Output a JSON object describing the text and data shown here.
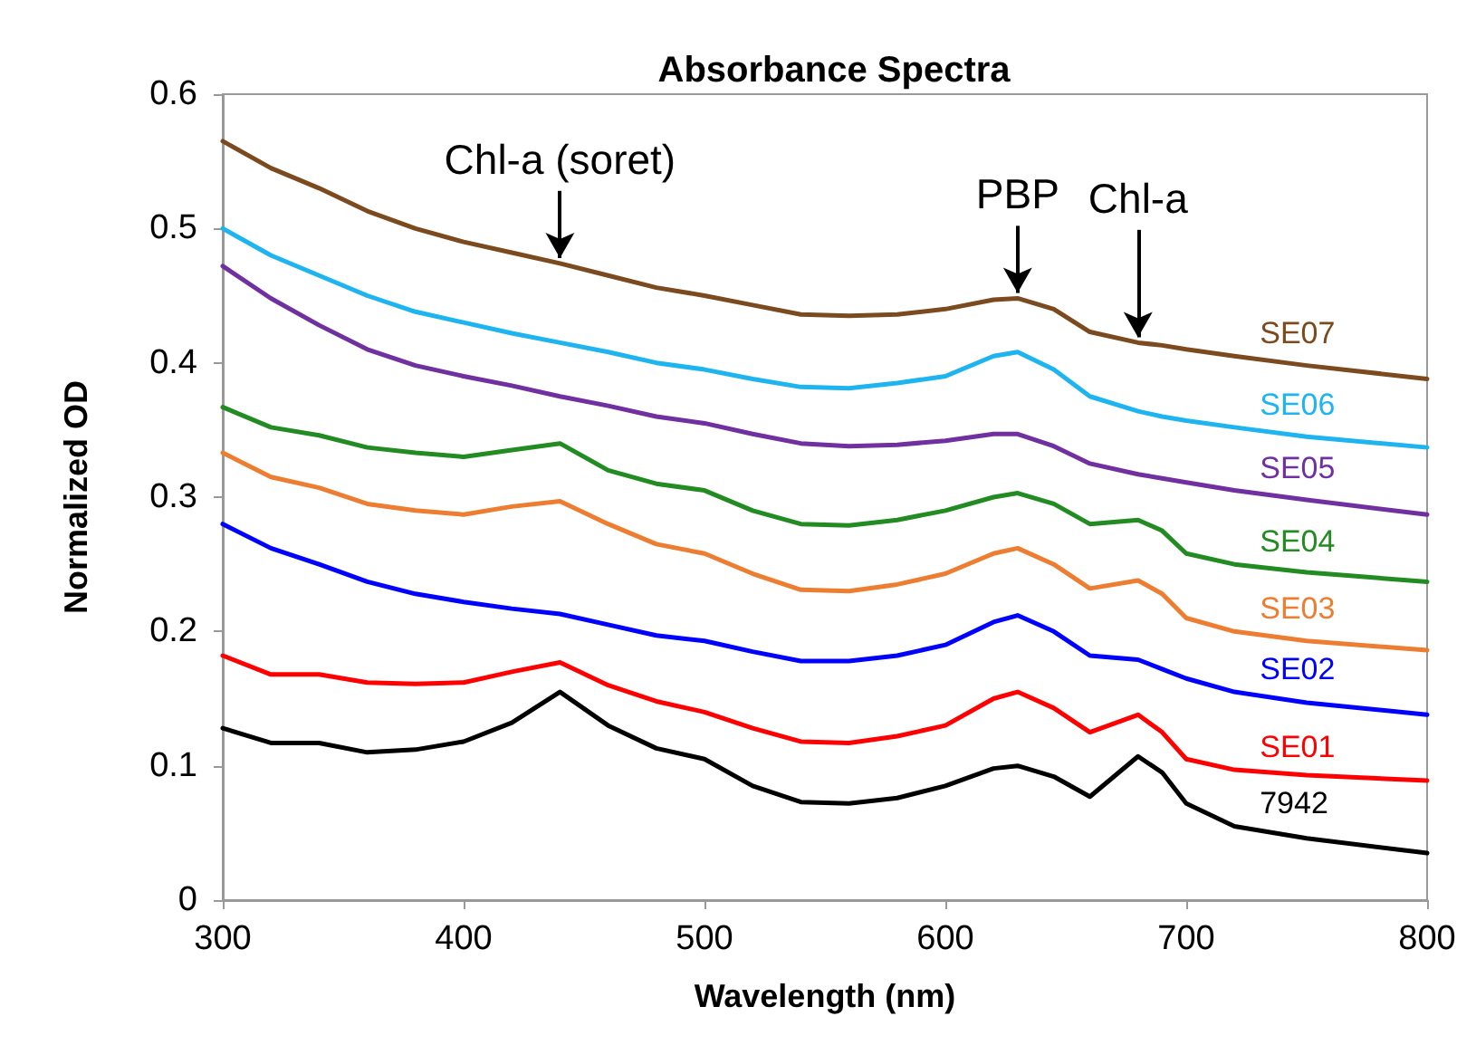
{
  "chart_data": {
    "type": "line",
    "title": "Absorbance Spectra",
    "xlabel": "Wavelength (nm)",
    "ylabel": "Normalized OD",
    "x": [
      300,
      320,
      340,
      360,
      380,
      400,
      420,
      440,
      460,
      480,
      500,
      520,
      540,
      560,
      580,
      600,
      620,
      630,
      645,
      660,
      680,
      690,
      700,
      720,
      750,
      800
    ],
    "series": [
      {
        "name": "7942",
        "color": "#000000",
        "values": [
          0.128,
          0.117,
          0.117,
          0.11,
          0.112,
          0.118,
          0.132,
          0.155,
          0.13,
          0.113,
          0.105,
          0.085,
          0.073,
          0.072,
          0.076,
          0.085,
          0.098,
          0.1,
          0.092,
          0.077,
          0.107,
          0.095,
          0.072,
          0.055,
          0.046,
          0.035
        ]
      },
      {
        "name": "SE01",
        "color": "#ff0000",
        "values": [
          0.182,
          0.168,
          0.168,
          0.162,
          0.161,
          0.162,
          0.17,
          0.177,
          0.16,
          0.148,
          0.14,
          0.128,
          0.118,
          0.117,
          0.122,
          0.13,
          0.15,
          0.155,
          0.143,
          0.125,
          0.138,
          0.125,
          0.105,
          0.097,
          0.093,
          0.089
        ]
      },
      {
        "name": "SE02",
        "color": "#0000ff",
        "values": [
          0.28,
          0.262,
          0.25,
          0.237,
          0.228,
          0.222,
          0.217,
          0.213,
          0.205,
          0.197,
          0.193,
          0.185,
          0.178,
          0.178,
          0.182,
          0.19,
          0.207,
          0.212,
          0.2,
          0.182,
          0.179,
          0.172,
          0.165,
          0.155,
          0.147,
          0.138
        ]
      },
      {
        "name": "SE03",
        "color": "#ed7d31",
        "values": [
          0.333,
          0.315,
          0.307,
          0.295,
          0.29,
          0.287,
          0.293,
          0.297,
          0.28,
          0.265,
          0.258,
          0.243,
          0.231,
          0.23,
          0.235,
          0.243,
          0.258,
          0.262,
          0.25,
          0.232,
          0.238,
          0.228,
          0.21,
          0.2,
          0.193,
          0.186
        ]
      },
      {
        "name": "SE04",
        "color": "#228b22",
        "values": [
          0.367,
          0.352,
          0.346,
          0.337,
          0.333,
          0.33,
          0.335,
          0.34,
          0.32,
          0.31,
          0.305,
          0.29,
          0.28,
          0.279,
          0.283,
          0.29,
          0.3,
          0.303,
          0.295,
          0.28,
          0.283,
          0.275,
          0.258,
          0.25,
          0.244,
          0.237
        ]
      },
      {
        "name": "SE05",
        "color": "#7030a0",
        "values": [
          0.472,
          0.448,
          0.428,
          0.41,
          0.398,
          0.39,
          0.383,
          0.375,
          0.368,
          0.36,
          0.355,
          0.347,
          0.34,
          0.338,
          0.339,
          0.342,
          0.347,
          0.347,
          0.338,
          0.325,
          0.317,
          0.314,
          0.311,
          0.305,
          0.298,
          0.287
        ]
      },
      {
        "name": "SE06",
        "color": "#1eb4f0",
        "values": [
          0.5,
          0.48,
          0.465,
          0.45,
          0.438,
          0.43,
          0.422,
          0.415,
          0.408,
          0.4,
          0.395,
          0.388,
          0.382,
          0.381,
          0.385,
          0.39,
          0.405,
          0.408,
          0.395,
          0.375,
          0.364,
          0.36,
          0.357,
          0.352,
          0.345,
          0.337
        ]
      },
      {
        "name": "SE07",
        "color": "#7b4a1e",
        "values": [
          0.565,
          0.545,
          0.53,
          0.513,
          0.5,
          0.49,
          0.482,
          0.474,
          0.465,
          0.456,
          0.45,
          0.443,
          0.436,
          0.435,
          0.436,
          0.44,
          0.447,
          0.448,
          0.44,
          0.423,
          0.415,
          0.413,
          0.41,
          0.405,
          0.398,
          0.388
        ]
      }
    ],
    "xlim": [
      300,
      800
    ],
    "xticks": [
      300,
      400,
      500,
      600,
      700,
      800
    ],
    "ylim": [
      0,
      0.6
    ],
    "yticks": [
      0,
      0.1,
      0.2,
      0.3,
      0.4,
      0.5,
      0.6
    ],
    "grid": false,
    "legend": false,
    "marker": "none",
    "line_style": "solid",
    "annotations": [
      {
        "text": "Chl-a (soret)",
        "x": 440,
        "y": 0.474
      },
      {
        "text": "PBP",
        "x": 630,
        "y": 0.448
      },
      {
        "text": "Chl-a",
        "x": 680,
        "y": 0.415
      }
    ]
  }
}
